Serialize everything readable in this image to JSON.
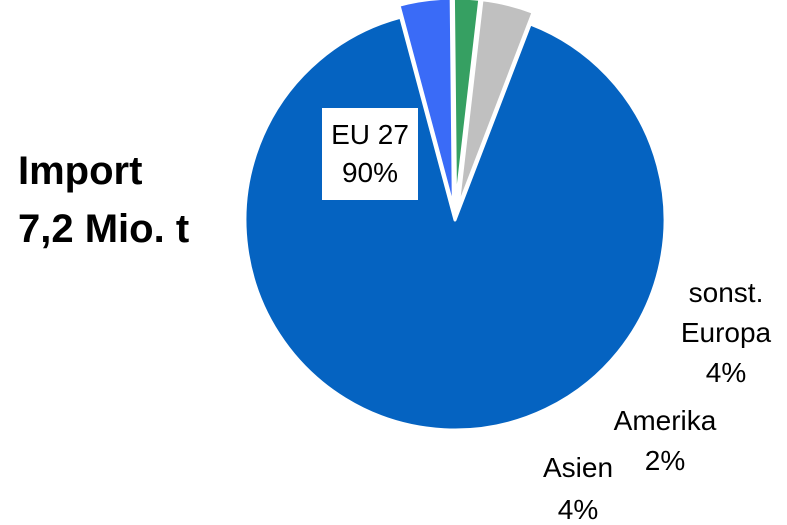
{
  "title": {
    "line1": "Import",
    "line2": "7,2 Mio. t"
  },
  "chart_data": {
    "type": "pie",
    "title": "Import 7,2 Mio. t",
    "slices": [
      {
        "label": "EU 27",
        "value": 90,
        "value_label": "90%",
        "color": "#0563C1"
      },
      {
        "label": "sonst. Europa",
        "value": 4,
        "value_label": "4%",
        "color": "#3A6BF7"
      },
      {
        "label": "Amerika",
        "value": 2,
        "value_label": "2%",
        "color": "#36A062"
      },
      {
        "label": "Asien",
        "value": 4,
        "value_label": "4%",
        "color": "#C0C0C0"
      }
    ]
  }
}
